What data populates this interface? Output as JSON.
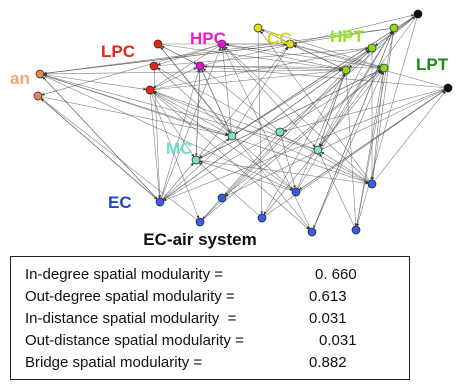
{
  "title": "EC-air system",
  "groups": [
    {
      "id": "an",
      "label": "an",
      "color": "#e8aa6e"
    },
    {
      "id": "lpc",
      "label": "LPC",
      "color": "#e8251b"
    },
    {
      "id": "hpc",
      "label": "HPC",
      "color": "#e81ccc"
    },
    {
      "id": "cc",
      "label": "CC",
      "color": "#d6d61a"
    },
    {
      "id": "hpt",
      "label": "HPT",
      "color": "#8fe81c"
    },
    {
      "id": "lpt",
      "label": "LPT",
      "color": "#1b8a1b"
    },
    {
      "id": "mc",
      "label": "MC",
      "color": "#6fe0c8"
    },
    {
      "id": "ec",
      "label": "EC",
      "color": "#2447c8"
    }
  ],
  "node_colors": {
    "an": "#e8845a",
    "lpc": "#e8251b",
    "hpc": "#d81ccc",
    "cc": "#e0e01a",
    "hpt": "#8fd81c",
    "lpt": "#111111",
    "mc": "#7fe0c8",
    "ec": "#3b5be0"
  },
  "metrics": [
    {
      "label": "In-degree spatial modularity =",
      "value": "0. 660"
    },
    {
      "label": "Out-degree spatial modularity =",
      "value": "0.613"
    },
    {
      "label": "In-distance spatial modularity  =",
      "value": "0.031"
    },
    {
      "label": "Out-distance spatial modularity =",
      "value": "0.031"
    },
    {
      "label": "Bridge spatial modularity =",
      "value": "0.882"
    }
  ]
}
